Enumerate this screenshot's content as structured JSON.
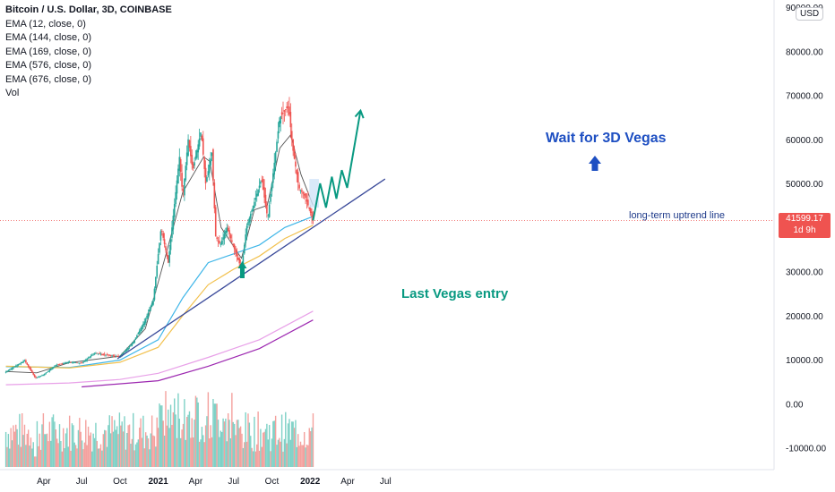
{
  "header": {
    "symbol_title": "Bitcoin / U.S. Dollar, 3D, COINBASE",
    "indicators": [
      "EMA (12, close, 0)",
      "EMA (144, close, 0)",
      "EMA (169, close, 0)",
      "EMA (576, close, 0)",
      "EMA (676, close, 0)",
      "Vol"
    ]
  },
  "currency_button": "USD",
  "price_tag": {
    "price": "41599.17",
    "countdown": "1d 9h",
    "color": "#ef5350"
  },
  "annotations": {
    "wait": "Wait for 3D Vegas",
    "entry": "Last Vegas entry",
    "trendline": "long-term uptrend line"
  },
  "colors": {
    "up": "#26a69a",
    "down": "#ef5350",
    "ema12": "#555555",
    "ema144": "#3fb6e8",
    "ema169": "#f2c14e",
    "ema576": "#e8a0e8",
    "ema676": "#9c27b0",
    "trendline": "#3a4a9a",
    "forecast": "#089981",
    "wait_text": "#1e4fc2",
    "entry_text": "#089981"
  },
  "chart_data": {
    "type": "candlestick",
    "y_tick_labels": [
      "90000.00",
      "80000.00",
      "70000.00",
      "60000.00",
      "50000.00",
      "40000.00",
      "30000.00",
      "20000.00",
      "10000.00",
      "0.00",
      "-10000.00"
    ],
    "ylim": [
      -14000,
      91000
    ],
    "x_tick_labels": [
      {
        "label": "Apr",
        "date": "2020-04"
      },
      {
        "label": "Jul",
        "date": "2020-07"
      },
      {
        "label": "Oct",
        "date": "2020-10"
      },
      {
        "label": "2021",
        "date": "2021-01"
      },
      {
        "label": "Apr",
        "date": "2021-04"
      },
      {
        "label": "Jul",
        "date": "2021-07"
      },
      {
        "label": "Oct",
        "date": "2021-10"
      },
      {
        "label": "2022",
        "date": "2022-01"
      },
      {
        "label": "Apr",
        "date": "2022-04"
      },
      {
        "label": "Jul",
        "date": "2022-07"
      }
    ],
    "price_path": [
      [
        "2020-01-01",
        7200
      ],
      [
        "2020-02-15",
        9800
      ],
      [
        "2020-03-12",
        5800
      ],
      [
        "2020-04-01",
        6600
      ],
      [
        "2020-05-01",
        8800
      ],
      [
        "2020-06-01",
        9500
      ],
      [
        "2020-07-01",
        9200
      ],
      [
        "2020-08-01",
        11500
      ],
      [
        "2020-09-01",
        11000
      ],
      [
        "2020-10-01",
        10700
      ],
      [
        "2020-11-01",
        13800
      ],
      [
        "2020-12-01",
        19000
      ],
      [
        "2020-12-20",
        23500
      ],
      [
        "2021-01-08",
        40000
      ],
      [
        "2021-01-25",
        32000
      ],
      [
        "2021-02-21",
        56000
      ],
      [
        "2021-03-01",
        47000
      ],
      [
        "2021-03-14",
        60000
      ],
      [
        "2021-03-25",
        53000
      ],
      [
        "2021-04-14",
        62000
      ],
      [
        "2021-04-25",
        50000
      ],
      [
        "2021-05-10",
        57000
      ],
      [
        "2021-05-19",
        38000
      ],
      [
        "2021-05-30",
        36000
      ],
      [
        "2021-06-15",
        40000
      ],
      [
        "2021-07-20",
        30500
      ],
      [
        "2021-08-01",
        40000
      ],
      [
        "2021-09-06",
        51000
      ],
      [
        "2021-09-21",
        42000
      ],
      [
        "2021-10-20",
        65000
      ],
      [
        "2021-11-10",
        67500
      ],
      [
        "2021-11-20",
        58000
      ],
      [
        "2021-12-05",
        49000
      ],
      [
        "2021-12-20",
        47000
      ],
      [
        "2022-01-08",
        41599
      ]
    ],
    "ema_lines": [
      {
        "name": "EMA 12",
        "points": [
          [
            "2020-01-01",
            7300
          ],
          [
            "2020-03-15",
            7000
          ],
          [
            "2020-06-01",
            9300
          ],
          [
            "2020-10-01",
            10800
          ],
          [
            "2020-12-01",
            17000
          ],
          [
            "2021-01-20",
            34000
          ],
          [
            "2021-03-01",
            48000
          ],
          [
            "2021-04-20",
            56000
          ],
          [
            "2021-05-05",
            55000
          ],
          [
            "2021-06-01",
            40000
          ],
          [
            "2021-07-20",
            33000
          ],
          [
            "2021-08-20",
            44000
          ],
          [
            "2021-09-20",
            45000
          ],
          [
            "2021-10-20",
            58000
          ],
          [
            "2021-11-15",
            61000
          ],
          [
            "2021-12-10",
            52000
          ],
          [
            "2022-01-08",
            45000
          ]
        ]
      },
      {
        "name": "EMA 144",
        "points": [
          [
            "2020-01-01",
            8400
          ],
          [
            "2020-06-01",
            8200
          ],
          [
            "2020-10-01",
            9900
          ],
          [
            "2021-01-01",
            14500
          ],
          [
            "2021-03-01",
            24000
          ],
          [
            "2021-05-01",
            32000
          ],
          [
            "2021-07-01",
            34000
          ],
          [
            "2021-09-01",
            36000
          ],
          [
            "2021-11-01",
            40000
          ],
          [
            "2022-01-08",
            42500
          ]
        ]
      },
      {
        "name": "EMA 169",
        "points": [
          [
            "2020-01-01",
            8500
          ],
          [
            "2020-06-01",
            8100
          ],
          [
            "2020-10-01",
            9400
          ],
          [
            "2021-01-01",
            12800
          ],
          [
            "2021-03-01",
            20000
          ],
          [
            "2021-05-01",
            27000
          ],
          [
            "2021-07-01",
            30500
          ],
          [
            "2021-09-01",
            33500
          ],
          [
            "2021-11-01",
            37500
          ],
          [
            "2022-01-08",
            40500
          ]
        ]
      },
      {
        "name": "EMA 576",
        "points": [
          [
            "2020-01-01",
            4300
          ],
          [
            "2020-06-01",
            4700
          ],
          [
            "2020-10-01",
            5500
          ],
          [
            "2021-01-01",
            6900
          ],
          [
            "2021-05-01",
            10500
          ],
          [
            "2021-09-01",
            14500
          ],
          [
            "2022-01-08",
            21000
          ]
        ]
      },
      {
        "name": "EMA 676",
        "points": [
          [
            "2020-07-01",
            3800
          ],
          [
            "2021-01-01",
            5200
          ],
          [
            "2021-05-01",
            8500
          ],
          [
            "2021-09-01",
            12500
          ],
          [
            "2022-01-08",
            19000
          ]
        ]
      }
    ],
    "trendline": {
      "from": [
        "2020-09-25",
        10200
      ],
      "to": [
        "2022-06-30",
        51000
      ]
    },
    "forecast_path": [
      [
        "2022-01-08",
        41599
      ],
      [
        "2022-01-25",
        50000
      ],
      [
        "2022-02-08",
        44500
      ],
      [
        "2022-02-22",
        51500
      ],
      [
        "2022-03-05",
        46500
      ],
      [
        "2022-03-18",
        53000
      ],
      [
        "2022-03-31",
        49000
      ],
      [
        "2022-05-02",
        66500
      ]
    ],
    "target_zone": {
      "from": [
        "2021-12-30",
        51000
      ],
      "to": [
        "2022-01-22",
        44500
      ]
    },
    "last_price_line": 41599.17,
    "volume_spikes": [
      [
        "2020-03-12",
        -12000
      ],
      [
        "2021-01-08",
        -400
      ],
      [
        "2021-05-19",
        0
      ]
    ]
  }
}
